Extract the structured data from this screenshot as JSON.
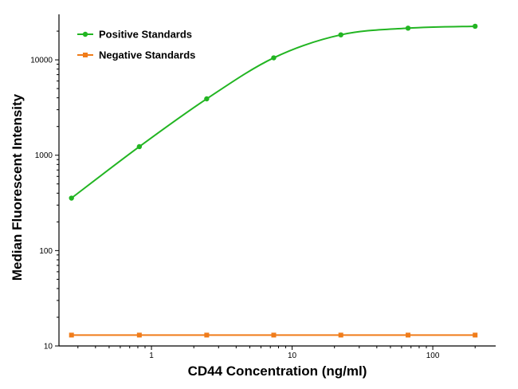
{
  "chart_data": {
    "type": "line",
    "title": "",
    "xlabel": "CD44 Concentration (ng/ml)",
    "ylabel": "Median Fluorescent Intensity",
    "xscale": "log",
    "yscale": "log",
    "xlim": [
      0.22,
      280
    ],
    "ylim": [
      10,
      30000
    ],
    "x_ticks": [
      1,
      10,
      100
    ],
    "x_tick_labels": [
      "1",
      "10",
      "100"
    ],
    "y_ticks": [
      10,
      100,
      1000,
      10000
    ],
    "y_tick_labels": [
      "10",
      "100",
      "1000",
      "10000"
    ],
    "grid": false,
    "legend_position": "top-left",
    "series": [
      {
        "name": "Positive Standards",
        "color": "#22b522",
        "marker": "circle",
        "x": [
          0.27,
          0.82,
          2.47,
          7.4,
          22.2,
          66.7,
          200
        ],
        "y": [
          355,
          1230,
          3900,
          10500,
          18300,
          21500,
          22500
        ]
      },
      {
        "name": "Negative Standards",
        "color": "#f07c1a",
        "marker": "square",
        "x": [
          0.27,
          0.82,
          2.47,
          7.4,
          22.2,
          66.7,
          200
        ],
        "y": [
          13,
          13,
          13,
          13,
          13,
          13,
          13
        ]
      }
    ]
  }
}
